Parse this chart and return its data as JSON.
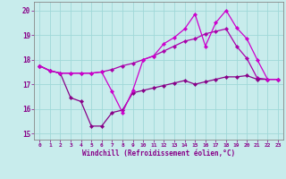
{
  "x": [
    0,
    1,
    2,
    3,
    4,
    5,
    6,
    7,
    8,
    9,
    10,
    11,
    12,
    13,
    14,
    15,
    16,
    17,
    18,
    19,
    20,
    21,
    22,
    23
  ],
  "line_top": [
    17.75,
    17.55,
    17.45,
    17.45,
    17.45,
    17.45,
    17.5,
    17.6,
    17.75,
    17.85,
    18.0,
    18.15,
    18.35,
    18.55,
    18.75,
    18.85,
    19.05,
    19.15,
    19.25,
    18.55,
    18.05,
    17.25,
    17.2,
    17.2
  ],
  "line_mid": [
    17.75,
    17.55,
    17.45,
    17.45,
    17.45,
    17.45,
    17.5,
    16.7,
    15.85,
    16.75,
    18.0,
    18.15,
    18.65,
    18.9,
    19.25,
    19.85,
    18.55,
    19.5,
    20.0,
    19.3,
    18.85,
    18.0,
    17.2,
    17.2
  ],
  "line_bot": [
    17.75,
    17.55,
    17.45,
    16.45,
    16.3,
    15.3,
    15.3,
    15.85,
    15.95,
    16.65,
    16.75,
    16.85,
    16.95,
    17.05,
    17.15,
    17.0,
    17.1,
    17.2,
    17.3,
    17.3,
    17.35,
    17.2,
    17.2,
    17.2
  ],
  "line_color1": "#aa00aa",
  "line_color2": "#cc00cc",
  "line_color3": "#880088",
  "bg_color": "#c8ecec",
  "grid_color": "#a0d8d8",
  "spine_color": "#888888",
  "tick_color": "#880088",
  "xlabel": "Windchill (Refroidissement éolien,°C)",
  "ylim": [
    14.75,
    20.35
  ],
  "xlim": [
    -0.5,
    23.5
  ],
  "yticks": [
    15,
    16,
    17,
    18,
    19,
    20
  ],
  "xticks": [
    0,
    1,
    2,
    3,
    4,
    5,
    6,
    7,
    8,
    9,
    10,
    11,
    12,
    13,
    14,
    15,
    16,
    17,
    18,
    19,
    20,
    21,
    22,
    23
  ],
  "marker": "D",
  "marker_size": 2.2,
  "linewidth": 0.9
}
